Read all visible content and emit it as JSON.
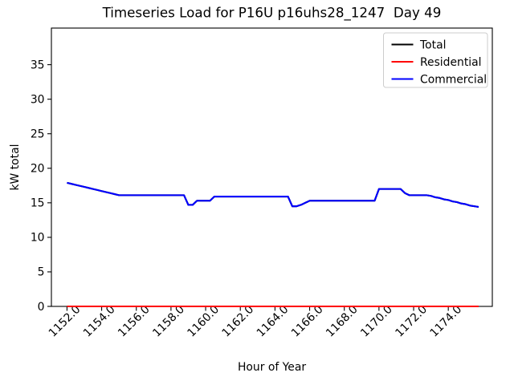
{
  "chart_data": {
    "type": "line",
    "title": "Timeseries Load for P16U p16uhs28_1247  Day 49",
    "xlabel": "Hour of Year",
    "ylabel": "kW total",
    "xlim": [
      1151.1,
      1176.54
    ],
    "ylim": [
      0,
      40.3
    ],
    "grid": false,
    "x_start": 1152.0,
    "x_step": 0.25,
    "x_end": 1175.75,
    "n_points": 96,
    "x_ticks": [
      1152,
      1154,
      1156,
      1158,
      1160,
      1162,
      1164,
      1166,
      1168,
      1170,
      1172,
      1174
    ],
    "x_tick_labels": [
      "1152.0",
      "1154.0",
      "1156.0",
      "1158.0",
      "1160.0",
      "1162.0",
      "1164.0",
      "1166.0",
      "1168.0",
      "1170.0",
      "1172.0",
      "1174.0"
    ],
    "x_tick_rotation": 45,
    "y_ticks": [
      0,
      5,
      10,
      15,
      20,
      25,
      30,
      35
    ],
    "y_tick_labels": [
      "0",
      "5",
      "10",
      "15",
      "20",
      "25",
      "30",
      "35"
    ],
    "legend": {
      "position": "upper right",
      "entries": [
        {
          "label": "Total",
          "color": "#000000"
        },
        {
          "label": "Residential",
          "color": "#ff0000"
        },
        {
          "label": "Commercial",
          "color": "#0000ff"
        }
      ]
    },
    "series": [
      {
        "name": "Total",
        "color": "#000000",
        "values": [
          17.9,
          17.75,
          17.6,
          17.45,
          17.3,
          17.15,
          17.0,
          16.85,
          16.7,
          16.55,
          16.4,
          16.25,
          16.1,
          16.1,
          16.1,
          16.1,
          16.1,
          16.1,
          16.1,
          16.1,
          16.1,
          16.1,
          16.1,
          16.1,
          16.1,
          16.1,
          16.1,
          16.1,
          14.7,
          14.7,
          15.3,
          15.3,
          15.3,
          15.3,
          15.9,
          15.9,
          15.9,
          15.9,
          15.9,
          15.9,
          15.9,
          15.9,
          15.9,
          15.9,
          15.9,
          15.9,
          15.9,
          15.9,
          15.9,
          15.9,
          15.9,
          15.9,
          14.5,
          14.5,
          14.7,
          15.0,
          15.3,
          15.3,
          15.3,
          15.3,
          15.3,
          15.3,
          15.3,
          15.3,
          15.3,
          15.3,
          15.3,
          15.3,
          15.3,
          15.3,
          15.3,
          15.3,
          17.0,
          17.0,
          17.0,
          17.0,
          17.0,
          17.0,
          16.4,
          16.1,
          16.1,
          16.1,
          16.1,
          16.1,
          16.0,
          15.8,
          15.7,
          15.5,
          15.4,
          15.2,
          15.1,
          14.9,
          14.8,
          14.6,
          14.5,
          14.4
        ]
      },
      {
        "name": "Residential",
        "color": "#ff0000",
        "values": [
          0,
          0,
          0,
          0,
          0,
          0,
          0,
          0,
          0,
          0,
          0,
          0,
          0,
          0,
          0,
          0,
          0,
          0,
          0,
          0,
          0,
          0,
          0,
          0,
          0,
          0,
          0,
          0,
          0,
          0,
          0,
          0,
          0,
          0,
          0,
          0,
          0,
          0,
          0,
          0,
          0,
          0,
          0,
          0,
          0,
          0,
          0,
          0,
          0,
          0,
          0,
          0,
          0,
          0,
          0,
          0,
          0,
          0,
          0,
          0,
          0,
          0,
          0,
          0,
          0,
          0,
          0,
          0,
          0,
          0,
          0,
          0,
          0,
          0,
          0,
          0,
          0,
          0,
          0,
          0,
          0,
          0,
          0,
          0,
          0,
          0,
          0,
          0,
          0,
          0,
          0,
          0,
          0,
          0,
          0,
          0
        ]
      },
      {
        "name": "Commercial",
        "color": "#0000ff",
        "values": [
          17.9,
          17.75,
          17.6,
          17.45,
          17.3,
          17.15,
          17.0,
          16.85,
          16.7,
          16.55,
          16.4,
          16.25,
          16.1,
          16.1,
          16.1,
          16.1,
          16.1,
          16.1,
          16.1,
          16.1,
          16.1,
          16.1,
          16.1,
          16.1,
          16.1,
          16.1,
          16.1,
          16.1,
          14.7,
          14.7,
          15.3,
          15.3,
          15.3,
          15.3,
          15.9,
          15.9,
          15.9,
          15.9,
          15.9,
          15.9,
          15.9,
          15.9,
          15.9,
          15.9,
          15.9,
          15.9,
          15.9,
          15.9,
          15.9,
          15.9,
          15.9,
          15.9,
          14.5,
          14.5,
          14.7,
          15.0,
          15.3,
          15.3,
          15.3,
          15.3,
          15.3,
          15.3,
          15.3,
          15.3,
          15.3,
          15.3,
          15.3,
          15.3,
          15.3,
          15.3,
          15.3,
          15.3,
          17.0,
          17.0,
          17.0,
          17.0,
          17.0,
          17.0,
          16.4,
          16.1,
          16.1,
          16.1,
          16.1,
          16.1,
          16.0,
          15.8,
          15.7,
          15.5,
          15.4,
          15.2,
          15.1,
          14.9,
          14.8,
          14.6,
          14.5,
          14.4
        ]
      }
    ]
  }
}
